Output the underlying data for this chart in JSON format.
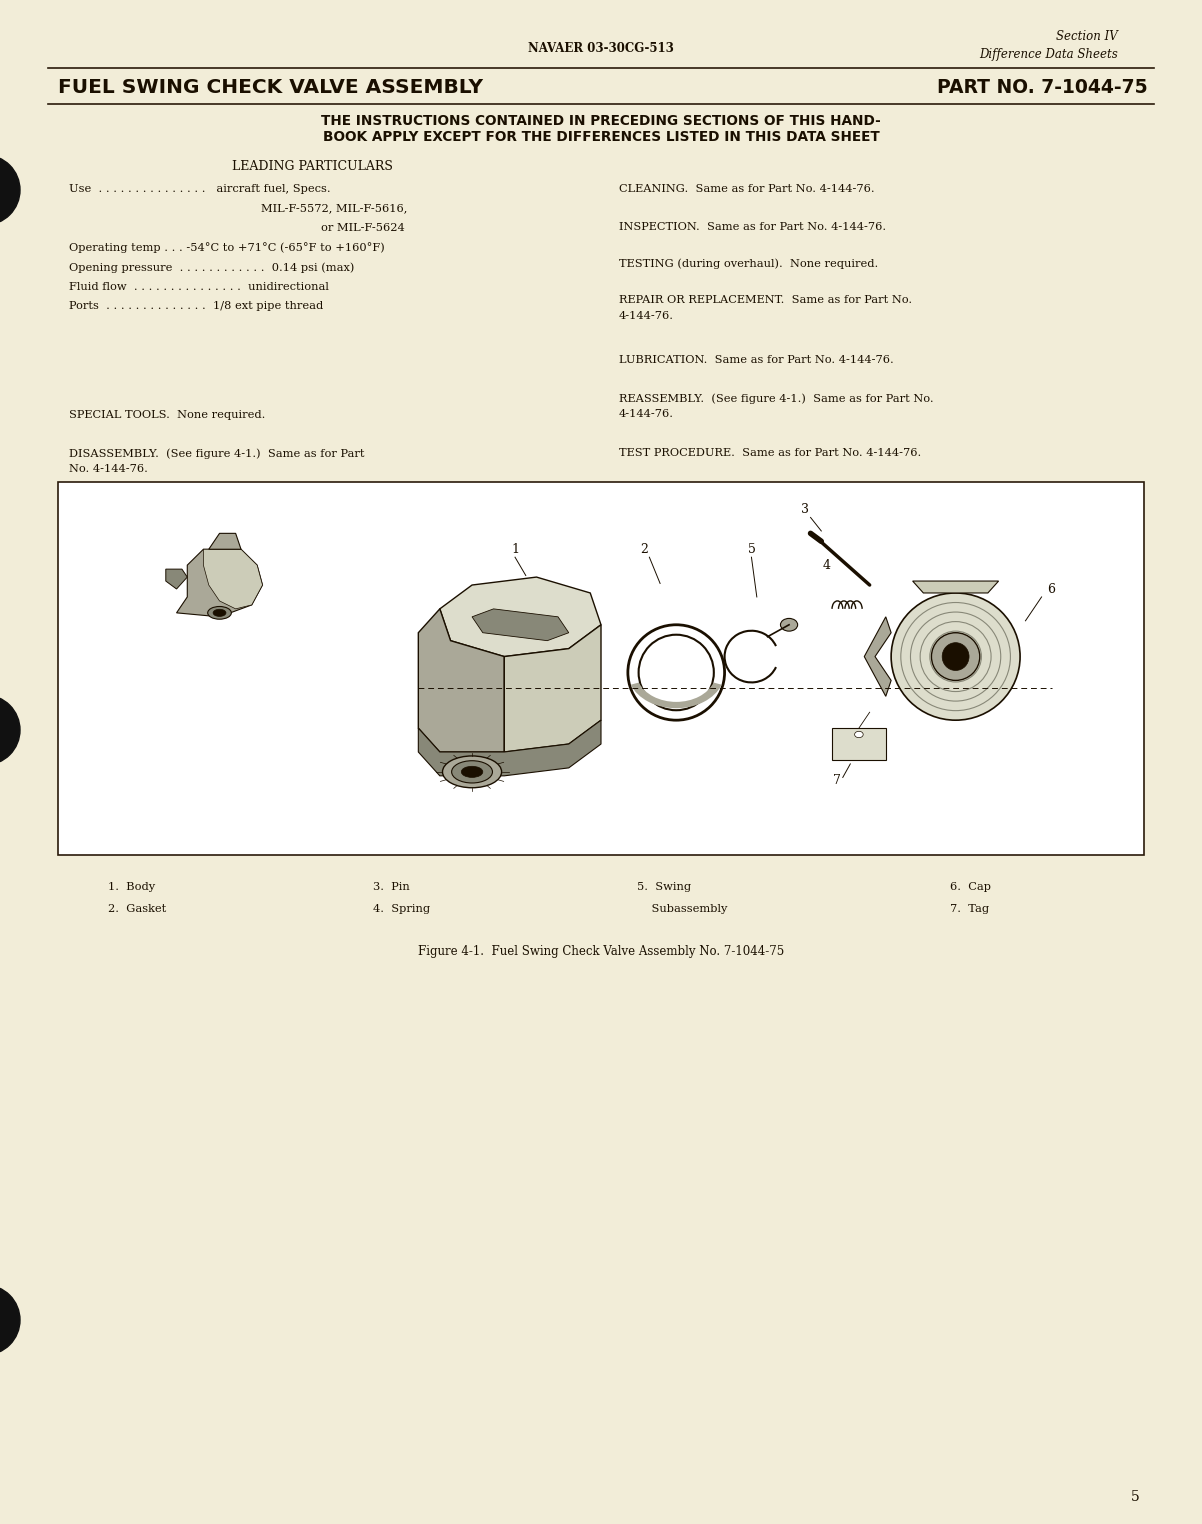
{
  "bg_color": "#f2edd8",
  "page_width": 12.02,
  "page_height": 15.24,
  "dpi": 100,
  "header_doc_num": "NAVAER 03-30CG-513",
  "header_section": "Section IV",
  "header_subsection": "Difference Data Sheets",
  "title_left": "FUEL SWING CHECK VALVE ASSEMBLY",
  "title_right": "PART NO. 7-1044-75",
  "subtitle_line1": "THE INSTRUCTIONS CONTAINED IN PRECEDING SECTIONS OF THIS HAND-",
  "subtitle_line2": "BOOK APPLY EXCEPT FOR THE DIFFERENCES LISTED IN THIS DATA SHEET",
  "leading_particulars_header": "LEADING PARTICULARS",
  "lp_use_label": "Use  . . . . . . . . . . . . . . .   aircraft fuel, Specs.",
  "lp_use2": "MIL-F-5572, MIL-F-5616,",
  "lp_use3": "or MIL-F-5624",
  "lp_temp": "Operating temp . . . -54°C to +71°C (-65°F to +160°F)",
  "lp_pressure": "Opening pressure  . . . . . . . . . . . .  0.14 psi (max)",
  "lp_flow": "Fluid flow  . . . . . . . . . . . . . . .  unidirectional",
  "lp_ports": "Ports  . . . . . . . . . . . . . .  1/8 ext pipe thread",
  "special_tools": "SPECIAL TOOLS.  None required.",
  "disassembly_l1": "DISASSEMBLY.  (See figure 4-1.)  Same as for Part",
  "disassembly_l2": "No. 4-144-76.",
  "cleaning": "CLEANING.  Same as for Part No. 4-144-76.",
  "inspection": "INSPECTION.  Same as for Part No. 4-144-76.",
  "testing": "TESTING (during overhaul).  None required.",
  "repair_l1": "REPAIR OR REPLACEMENT.  Same as for Part No.",
  "repair_l2": "4-144-76.",
  "lubrication": "LUBRICATION.  Same as for Part No. 4-144-76.",
  "reassembly_l1": "REASSEMBLY.  (See figure 4-1.)  Same as for Part No.",
  "reassembly_l2": "4-144-76.",
  "test_procedure": "TEST PROCEDURE.  Same as for Part No. 4-144-76.",
  "legend_col1_line1": "1.  Body",
  "legend_col1_line2": "2.  Gasket",
  "legend_col2_line1": "3.  Pin",
  "legend_col2_line2": "4.  Spring",
  "legend_col3_line1": "5.  Swing",
  "legend_col3_line2": "    Subassembly",
  "legend_col4_line1": "6.  Cap",
  "legend_col4_line2": "7.  Tag",
  "figure_caption": "Figure 4-1.  Fuel Swing Check Valve Assembly No. 7-1044-75",
  "page_number": "5",
  "text_color": "#1a0f00",
  "rule_color": "#2a1a0a",
  "diagram_bg": "#ffffff"
}
